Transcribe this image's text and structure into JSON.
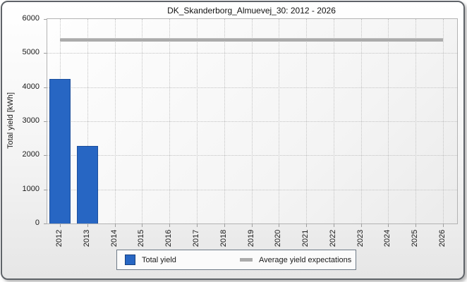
{
  "title": "DK_Skanderborg_Almuevej_30: 2012 - 2026",
  "y_axis": {
    "label": "Total yield [kWh]",
    "ticks": [
      0,
      1000,
      2000,
      3000,
      4000,
      5000,
      6000
    ],
    "max": 6000
  },
  "legend": {
    "items": [
      {
        "label": "Total yield",
        "swatch": "bar-swatch-icon",
        "color": "#2766c3"
      },
      {
        "label": "Average yield expectations",
        "swatch": "line-swatch-icon",
        "color": "#ababab"
      }
    ]
  },
  "colors": {
    "bar_fill": "#2766c3",
    "bar_border": "#1d4f9c",
    "average_line": "#ababab",
    "grid": "#c3c3c3",
    "plot_border": "#b3b3b3",
    "frame_border": "#5f6368",
    "text": "#1a1a1a"
  },
  "chart_data": {
    "type": "bar",
    "title": "DK_Skanderborg_Almuevej_30: 2012 - 2026",
    "categories": [
      "2012",
      "2013",
      "2014",
      "2015",
      "2016",
      "2017",
      "2018",
      "2019",
      "2020",
      "2021",
      "2022",
      "2023",
      "2024",
      "2025",
      "2026"
    ],
    "series": [
      {
        "name": "Total yield",
        "type": "bar",
        "color": "#2766c3",
        "values": [
          4250,
          2280,
          null,
          null,
          null,
          null,
          null,
          null,
          null,
          null,
          null,
          null,
          null,
          null,
          null
        ]
      },
      {
        "name": "Average yield expectations",
        "type": "line",
        "color": "#ababab",
        "value": 5400
      }
    ],
    "xlabel": "",
    "ylabel": "Total yield [kWh]",
    "ylim": [
      0,
      6000
    ],
    "yticks": [
      0,
      1000,
      2000,
      3000,
      4000,
      5000,
      6000
    ],
    "grid": true,
    "legend_position": "bottom"
  }
}
